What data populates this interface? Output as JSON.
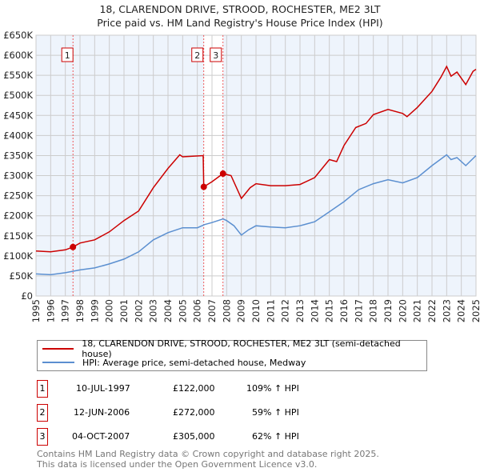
{
  "chart_data": {
    "type": "line",
    "title": "18, CLARENDON DRIVE, STROOD, ROCHESTER, ME2 3LT",
    "subtitle": "Price paid vs. HM Land Registry's House Price Index (HPI)",
    "xlim": [
      1995,
      2025
    ],
    "ylim": [
      0,
      650000
    ],
    "y_ticks": [
      "£0",
      "£50K",
      "£100K",
      "£150K",
      "£200K",
      "£250K",
      "£300K",
      "£350K",
      "£400K",
      "£450K",
      "£500K",
      "£550K",
      "£600K",
      "£650K"
    ],
    "x_ticks": [
      "1995",
      "1996",
      "1997",
      "1998",
      "1999",
      "2000",
      "2001",
      "2002",
      "2003",
      "2004",
      "2005",
      "2006",
      "2007",
      "2008",
      "2009",
      "2010",
      "2011",
      "2012",
      "2013",
      "2014",
      "2015",
      "2016",
      "2017",
      "2018",
      "2019",
      "2020",
      "2021",
      "2022",
      "2023",
      "2024",
      "2025"
    ],
    "grid": true,
    "series": [
      {
        "name": "18, CLARENDON DRIVE, STROOD, ROCHESTER, ME2 3LT (semi-detached house)",
        "color": "#cc0000",
        "x": [
          1995,
          1996,
          1997,
          1997.52,
          1998,
          1999,
          2000,
          2001,
          2002,
          2003,
          2004,
          2004.8,
          2005,
          2006.4,
          2006.44,
          2007,
          2007.75,
          2008.3,
          2009,
          2009.6,
          2010,
          2011,
          2012,
          2013,
          2014,
          2015,
          2015.5,
          2016,
          2016.8,
          2017.5,
          2018,
          2019,
          2020,
          2020.3,
          2021,
          2022,
          2022.6,
          2023,
          2023.3,
          2023.7,
          2024.3,
          2024.8,
          2025
        ],
        "y": [
          112000,
          110000,
          115000,
          122000,
          132000,
          140000,
          160000,
          188000,
          212000,
          270000,
          318000,
          352000,
          347000,
          350000,
          272000,
          285000,
          305000,
          300000,
          243000,
          270000,
          280000,
          275000,
          275000,
          278000,
          295000,
          340000,
          335000,
          375000,
          420000,
          430000,
          452000,
          465000,
          455000,
          447000,
          470000,
          510000,
          545000,
          572000,
          548000,
          558000,
          527000,
          560000,
          565000
        ]
      },
      {
        "name": "HPI: Average price, semi-detached house, Medway",
        "color": "#5b8fd0",
        "x": [
          1995,
          1996,
          1997,
          1998,
          1999,
          2000,
          2001,
          2002,
          2003,
          2004,
          2005,
          2006,
          2006.5,
          2007,
          2007.75,
          2008,
          2008.5,
          2009,
          2009.5,
          2010,
          2011,
          2012,
          2013,
          2014,
          2015,
          2016,
          2017,
          2018,
          2019,
          2020,
          2021,
          2022,
          2023,
          2023.3,
          2023.7,
          2024.3,
          2025
        ],
        "y": [
          55000,
          53000,
          58000,
          65000,
          70000,
          80000,
          92000,
          110000,
          140000,
          158000,
          170000,
          170000,
          178000,
          183000,
          192000,
          188000,
          175000,
          152000,
          165000,
          175000,
          172000,
          170000,
          175000,
          185000,
          210000,
          235000,
          265000,
          280000,
          290000,
          282000,
          295000,
          325000,
          352000,
          340000,
          345000,
          325000,
          350000
        ]
      }
    ],
    "sales": [
      {
        "label": "1",
        "x": 1997.52,
        "y": 122000,
        "date": "10-JUL-1997",
        "price": "£122,000",
        "hpi": "109% ↑ HPI"
      },
      {
        "label": "2",
        "x": 2006.44,
        "y": 272000,
        "date": "12-JUN-2006",
        "price": "£272,000",
        "hpi": "59% ↑ HPI"
      },
      {
        "label": "3",
        "x": 2007.75,
        "y": 305000,
        "date": "04-OCT-2007",
        "price": "£305,000",
        "hpi": "62% ↑ HPI"
      }
    ]
  },
  "footer": [
    "Contains HM Land Registry data © Crown copyright and database right 2025.",
    "This data is licensed under the Open Government Licence v3.0."
  ]
}
